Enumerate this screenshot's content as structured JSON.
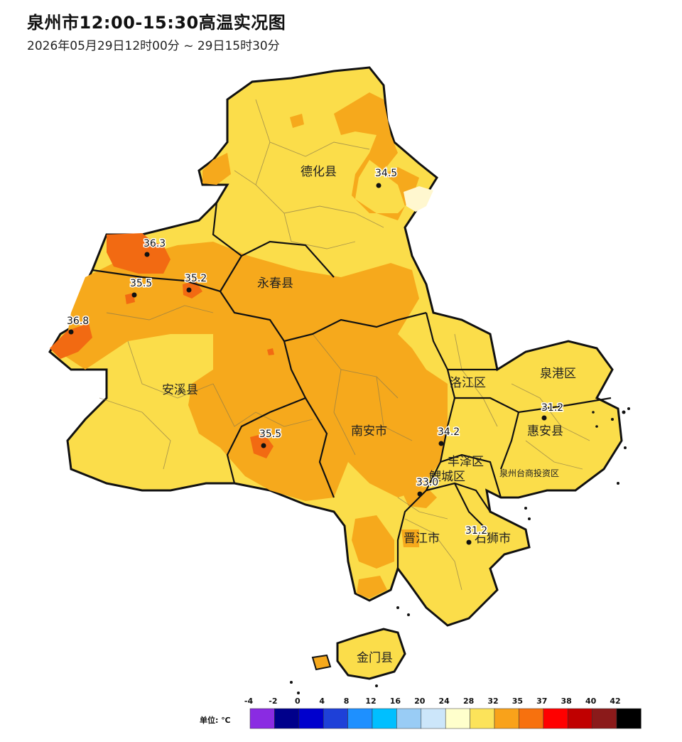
{
  "header": {
    "title": "泉州市12:00-15:30高温实况图",
    "subtitle": "2026年05月29日12时00分 ~ 29日15时30分"
  },
  "map": {
    "counties": [
      {
        "id": "dehua",
        "name": "德化县"
      },
      {
        "id": "yongchun",
        "name": "永春县"
      },
      {
        "id": "anxi",
        "name": "安溪县"
      },
      {
        "id": "nanan",
        "name": "南安市"
      },
      {
        "id": "luojiang",
        "name": "洛江区"
      },
      {
        "id": "quangang",
        "name": "泉港区"
      },
      {
        "id": "huian",
        "name": "惠安县"
      },
      {
        "id": "taishang",
        "name": "泉州台商投资区"
      },
      {
        "id": "fengze",
        "name": "丰泽区"
      },
      {
        "id": "licheng",
        "name": "鲤城区"
      },
      {
        "id": "jinjiang",
        "name": "晋江市"
      },
      {
        "id": "shishi",
        "name": "石狮市"
      },
      {
        "id": "jinmen",
        "name": "金门县"
      }
    ],
    "observations": [
      {
        "id": "dehua-station",
        "value": "34.5"
      },
      {
        "id": "nw-station-1",
        "value": "36.3"
      },
      {
        "id": "nw-station-2",
        "value": "35.5"
      },
      {
        "id": "yongchun-west-station",
        "value": "35.2"
      },
      {
        "id": "anxi-west-station",
        "value": "36.8"
      },
      {
        "id": "anxi-south-station",
        "value": "35.5"
      },
      {
        "id": "luojiang-station",
        "value": "34.2"
      },
      {
        "id": "huian-station",
        "value": "31.2"
      },
      {
        "id": "licheng-station",
        "value": "33.0"
      },
      {
        "id": "shishi-station",
        "value": "31.2"
      }
    ]
  },
  "legend": {
    "unit_label": "单位: ℃",
    "ticks": [
      "-4",
      "-2",
      "0",
      "4",
      "8",
      "12",
      "16",
      "20",
      "24",
      "28",
      "32",
      "35",
      "37",
      "38",
      "40",
      "42"
    ],
    "colors": [
      "#8a2be2",
      "#00008b",
      "#0000cd",
      "#1e40d8",
      "#1e90ff",
      "#00bfff",
      "#99ccf5",
      "#cce6fa",
      "#ffffcc",
      "#fce35a",
      "#f9a21a",
      "#f7710e",
      "#ff0000",
      "#c00000",
      "#8b1a1a",
      "#000000"
    ]
  },
  "colors": {
    "temp_28_32": "#fbdd4a",
    "temp_32_35": "#f6a91c",
    "temp_35_37": "#f26a12",
    "temp_below_28": "#fff7cf",
    "boundary": "#111111"
  }
}
